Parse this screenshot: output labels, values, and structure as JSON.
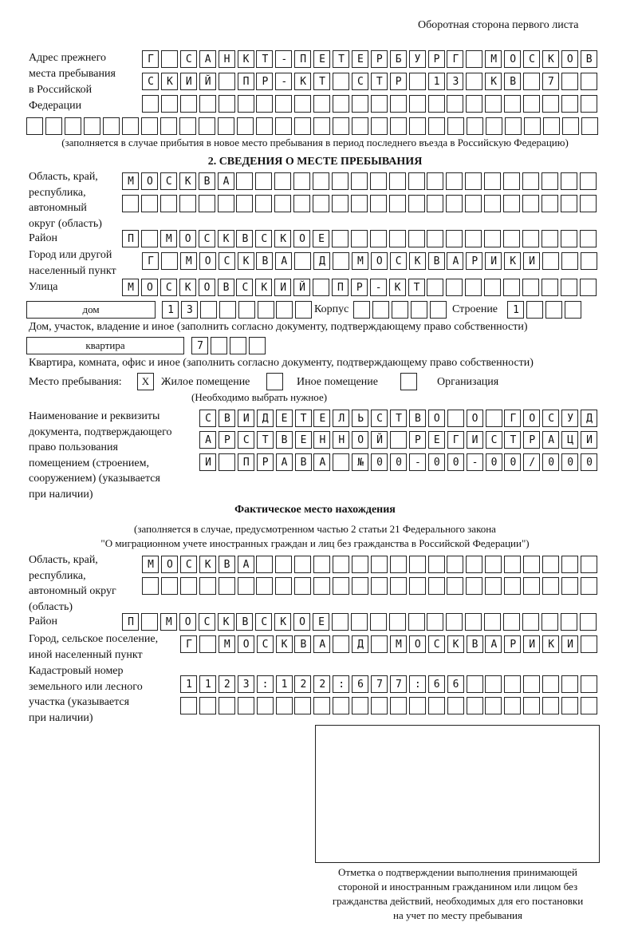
{
  "header": "Оборотная сторона первого листа",
  "prev_address": {
    "label": [
      "Адрес прежнего",
      "места пребывания",
      "в Российской",
      "Федерации"
    ],
    "rows": [
      "Г САНКТ-ПЕТЕРБУРГ МОСКОВ",
      "СКИЙ ПР-КТ СТР 13 КВ 7",
      "",
      ""
    ],
    "note": "(заполняется в случае прибытия в новое место пребывания в период последнего въезда в Российскую Федерацию)"
  },
  "section2": {
    "title": "2. СВЕДЕНИЯ О МЕСТЕ ПРЕБЫВАНИЯ",
    "region_label": [
      "Область, край,",
      "республика,",
      "автономный",
      "округ (область)"
    ],
    "region_rows": [
      "МОСКВА",
      ""
    ],
    "district_label": "Район",
    "district": "П МОСКВСКОЕ",
    "city_label": [
      "Город или другой",
      "населенный пункт"
    ],
    "city": "Г МОСКВА Д МОСКВАРИКИ",
    "street_label": "Улица",
    "street": "МОСКОВСКИЙ ПР-КТ",
    "house_type": "дом",
    "house": "13",
    "korpus_label": "Корпус",
    "korpus": "",
    "building_label": "Строение",
    "building": "1",
    "house_note": "Дом, участок, владение и иное (заполнить согласно документу, подтверждающему право собственности)",
    "flat_type": "квартира",
    "flat": "7",
    "flat_note": "Квартира, комната, офис и иное (заполнить согласно документу, подтверждающему право собственности)",
    "stay_label": "Место пребывания:",
    "options": [
      {
        "label": "Жилое помещение",
        "mark": "Х",
        "checked": true
      },
      {
        "label": "Иное помещение",
        "mark": "",
        "checked": false
      },
      {
        "label": "Организация",
        "mark": "",
        "checked": false
      }
    ],
    "choose_note": "(Необходимо выбрать нужное)",
    "doc_label": [
      "Наименование и реквизиты",
      "документа, подтверждающего",
      "право пользования",
      "помещением (строением,",
      "сооружением) (указывается",
      "при наличии)"
    ],
    "doc_rows": [
      "СВИДЕТЕЛЬСТВО О ГОСУД",
      "АРСТВЕННОЙ РЕГИСТРАЦИ",
      "И ПРАВА №00-00-00/000"
    ]
  },
  "actual": {
    "title": "Фактическое место нахождения",
    "note1": "(заполняется в случае, предусмотренном частью 2 статьи 21 Федерального закона",
    "note2": "\"О миграционном учете иностранных граждан и лиц без гражданства в Российской Федерации\")",
    "region_label": [
      "Область, край,",
      "республика,",
      "автономный округ",
      "(область)"
    ],
    "region_rows": [
      "МОСКВА",
      ""
    ],
    "district_label": "Район",
    "district": "П МОСКВСКОЕ",
    "city_label": [
      "Город, сельское поселение,",
      "иной населенный пункт"
    ],
    "city": "Г МОСКВА Д МОСКВАРИКИ",
    "cadastral_label": [
      "Кадастровый номер",
      "земельного или лесного",
      "участка (указывается",
      "при наличии)"
    ],
    "cadastral_rows": [
      "1123:122:677:66",
      ""
    ]
  },
  "stamp_caption": [
    "Отметка о подтверждении выполнения принимающей",
    "стороной и иностранным гражданином или лицом без",
    "гражданства действий, необходимых для его постановки",
    "на учет по месту пребывания"
  ]
}
